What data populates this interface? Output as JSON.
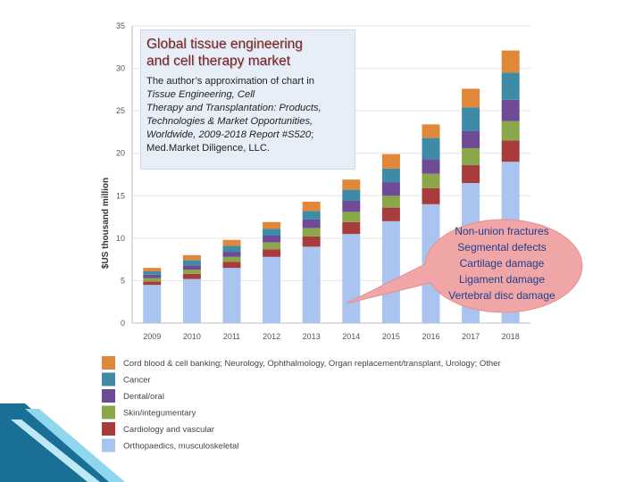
{
  "chart_data": {
    "type": "stacked-bar",
    "ylabel": "$US thousand million",
    "ylim": [
      0,
      35
    ],
    "yticks": [
      0,
      5,
      10,
      15,
      20,
      25,
      30,
      35
    ],
    "categories": [
      "2009",
      "2010",
      "2011",
      "2012",
      "2013",
      "2014",
      "2015",
      "2016",
      "2017",
      "2018"
    ],
    "series": [
      {
        "name": "Orthopaedics, musculoskeletal",
        "color": "#a9c4ee",
        "values": [
          4.5,
          5.2,
          6.5,
          7.8,
          9.0,
          10.5,
          12.0,
          14.0,
          16.5,
          19.0
        ]
      },
      {
        "name": "Cardiology and vascular",
        "color": "#a83c3c",
        "values": [
          0.4,
          0.6,
          0.7,
          0.9,
          1.2,
          1.4,
          1.6,
          1.9,
          2.1,
          2.5
        ]
      },
      {
        "name": "Skin/integumentary",
        "color": "#8aa84a",
        "values": [
          0.4,
          0.5,
          0.6,
          0.8,
          1.0,
          1.2,
          1.4,
          1.7,
          2.0,
          2.3
        ]
      },
      {
        "name": "Dental/oral",
        "color": "#6f4a96",
        "values": [
          0.4,
          0.5,
          0.6,
          0.8,
          1.0,
          1.3,
          1.6,
          1.7,
          2.0,
          2.5
        ]
      },
      {
        "name": "Cancer",
        "color": "#3d8ba6",
        "values": [
          0.4,
          0.6,
          0.7,
          0.8,
          1.0,
          1.3,
          1.6,
          2.5,
          2.8,
          3.2
        ]
      },
      {
        "name": "Cord blood & cell banking; Neurology, Ophthalmology, Organ replacement/transplant, Urology; Other",
        "color": "#e0873a",
        "values": [
          0.4,
          0.6,
          0.7,
          0.8,
          1.1,
          1.2,
          1.7,
          1.6,
          2.2,
          2.6
        ]
      }
    ],
    "legend_order": [
      5,
      4,
      3,
      2,
      1,
      0
    ]
  },
  "title_box": {
    "title_line1": "Global tissue engineering",
    "title_line2": "and cell therapy market",
    "sub_line1": "The author’s approximation of chart in",
    "sub_line2_italic": "Tissue Engineering, Cell",
    "sub_line3_italic": "Therapy and Transplantation: Products,",
    "sub_line4_italic": "Technologies & Market Opportunities,",
    "sub_line5_italic": "Worldwide, 2009-2018 Report #S520",
    "sub_line5_tail": ";",
    "sub_line6": "Med.Market Diligence, LLC."
  },
  "callout": {
    "lines": [
      "Non-union fractures",
      "Segmental defects",
      "Cartilage damage",
      "Ligament damage",
      "Vertebral disc damage"
    ],
    "fill": "#f0a6a6"
  }
}
